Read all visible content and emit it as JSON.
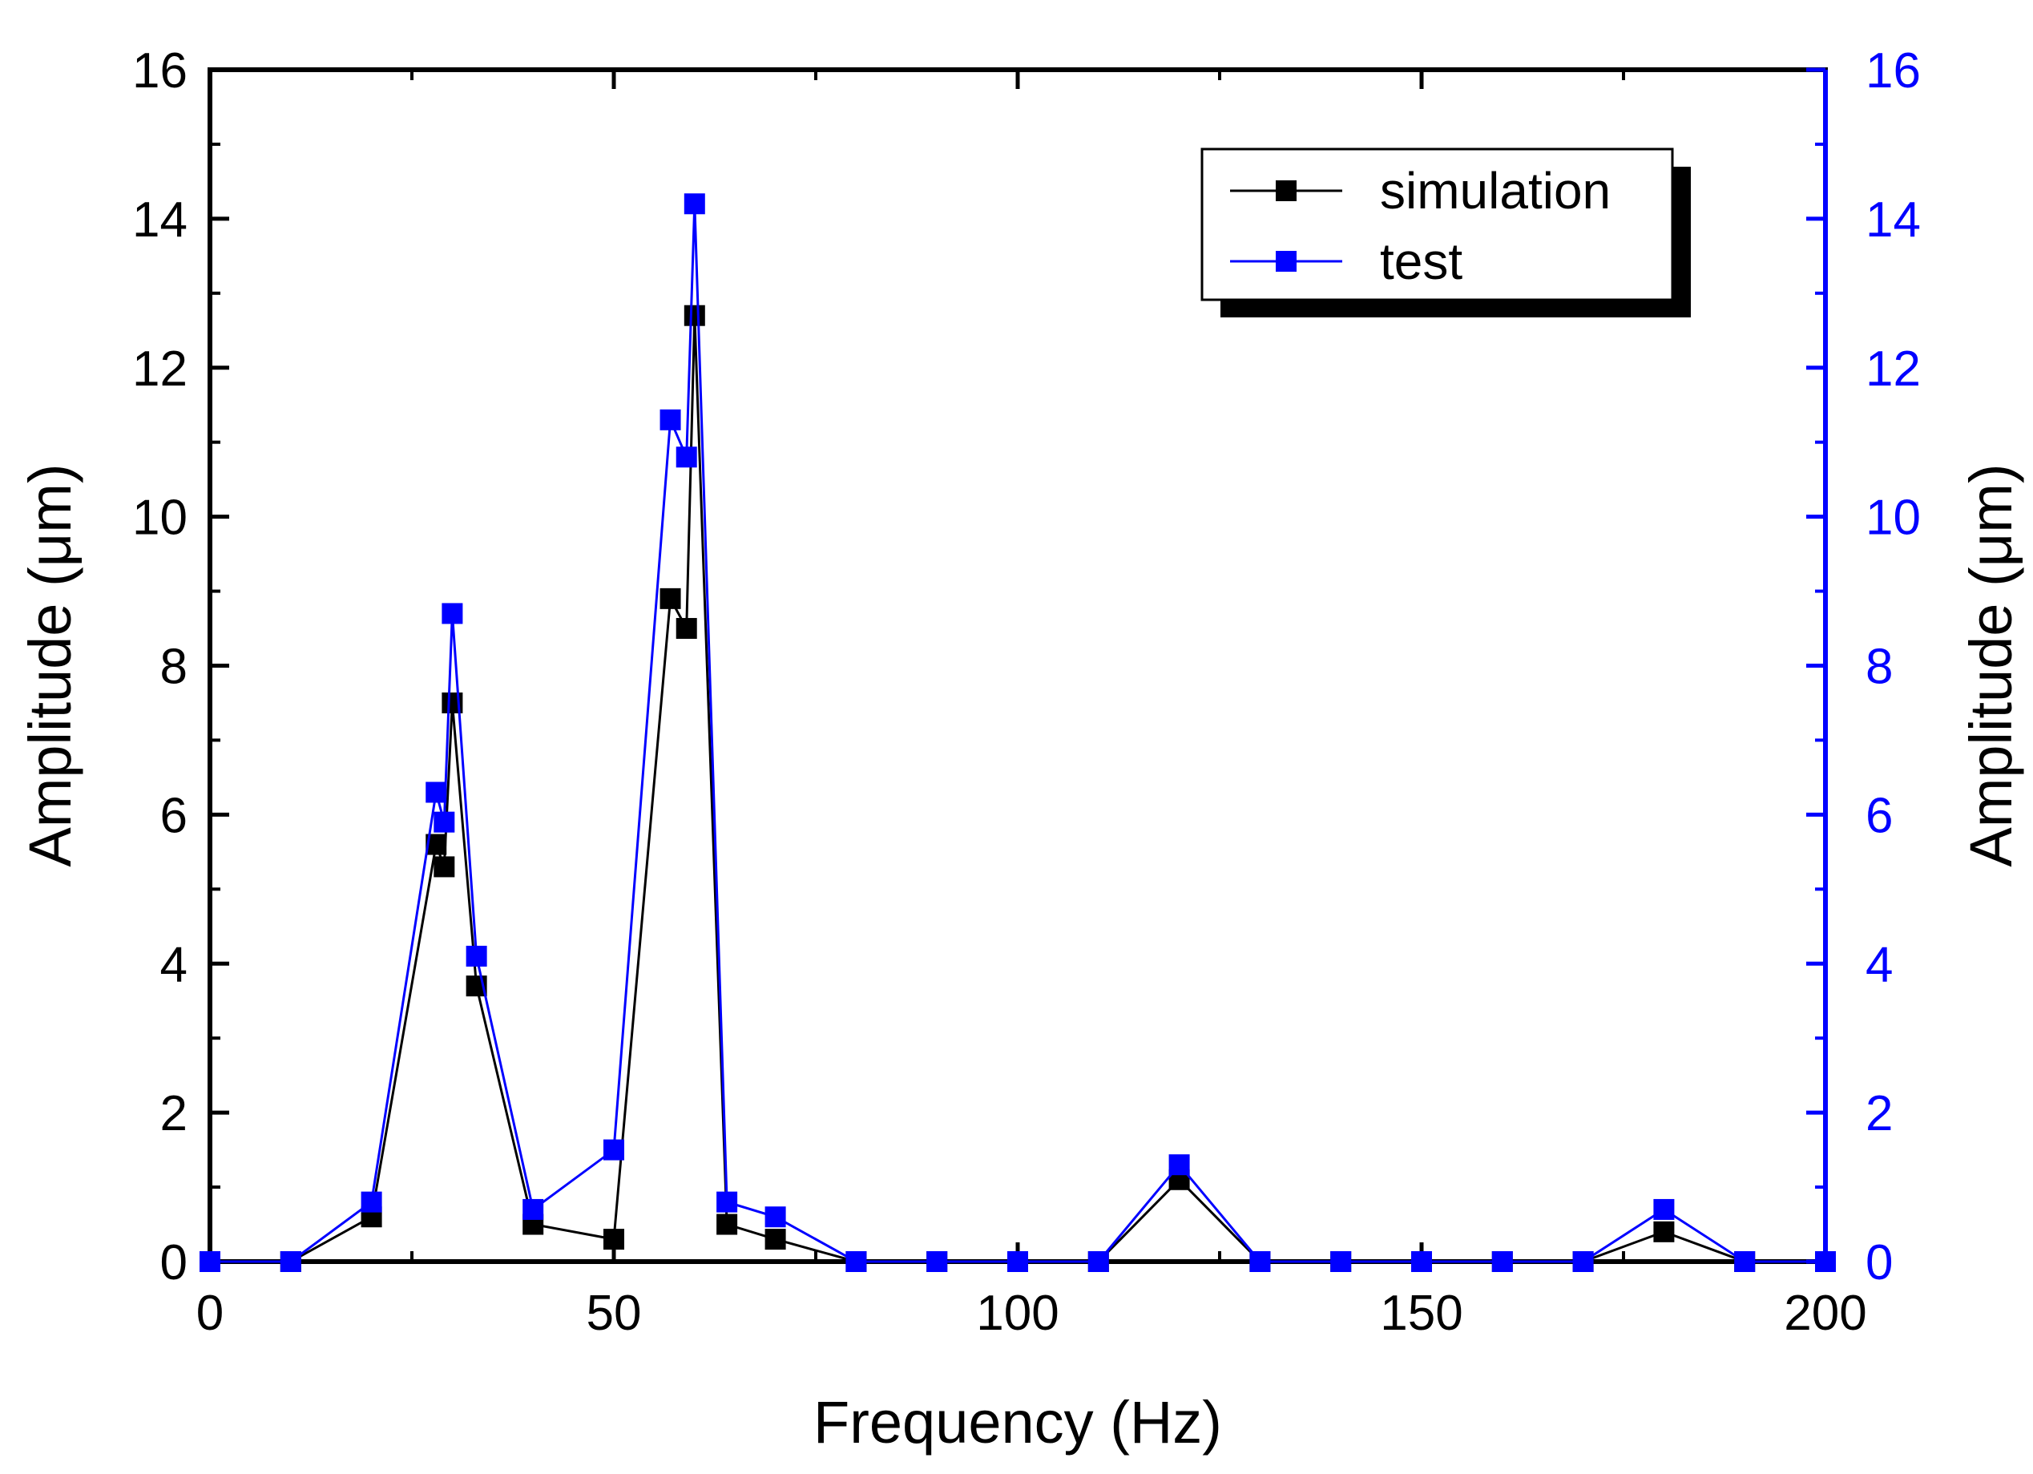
{
  "chart_data": {
    "type": "line",
    "xlabel": "Frequency (Hz)",
    "ylabel_left": "Amplitude (μm)",
    "ylabel_right": "Amplitude (μm)",
    "xlim": [
      0,
      200
    ],
    "ylim_left": [
      0,
      16
    ],
    "ylim_right": [
      0,
      16
    ],
    "x_ticks": [
      0,
      50,
      100,
      150,
      200
    ],
    "y_ticks": [
      0,
      2,
      4,
      6,
      8,
      10,
      12,
      14,
      16
    ],
    "x_tick_labels": [
      "0",
      "50",
      "100",
      "150",
      "200"
    ],
    "y_tick_labels": [
      "0",
      "2",
      "4",
      "6",
      "8",
      "10",
      "12",
      "14",
      "16"
    ],
    "legend": {
      "placement": "top-right"
    },
    "series": [
      {
        "name": "simulation",
        "axis": "left",
        "color": "#000000",
        "x": [
          0,
          10,
          20,
          28,
          29,
          30,
          33,
          40,
          50,
          57,
          59,
          60,
          64,
          70,
          80,
          90,
          100,
          110,
          120,
          130,
          140,
          150,
          160,
          170,
          180,
          190,
          200
        ],
        "y": [
          0,
          0,
          0.6,
          5.6,
          5.3,
          7.5,
          3.7,
          0.5,
          0.3,
          8.9,
          8.5,
          12.7,
          0.5,
          0.3,
          0,
          0,
          0,
          0,
          1.1,
          0,
          0,
          0,
          0,
          0,
          0.4,
          0,
          0
        ]
      },
      {
        "name": "test",
        "axis": "right",
        "color": "#0000ff",
        "x": [
          0,
          10,
          20,
          28,
          29,
          30,
          33,
          40,
          50,
          57,
          59,
          60,
          64,
          70,
          80,
          90,
          100,
          110,
          120,
          130,
          140,
          150,
          160,
          170,
          180,
          190,
          200
        ],
        "y": [
          0,
          0,
          0.8,
          6.3,
          5.9,
          8.7,
          4.1,
          0.7,
          1.5,
          11.3,
          10.8,
          14.2,
          0.8,
          0.6,
          0,
          0,
          0,
          0,
          1.3,
          0,
          0,
          0,
          0,
          0,
          0.7,
          0,
          0
        ]
      }
    ]
  }
}
